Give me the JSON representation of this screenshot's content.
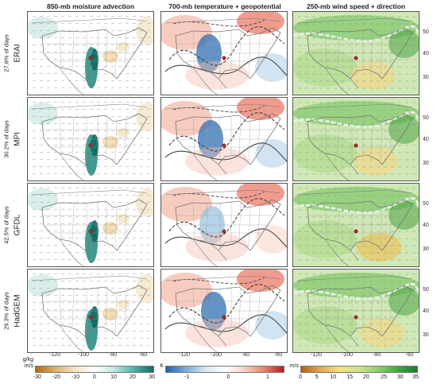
{
  "columns": [
    {
      "title": "850-mb moisture advection"
    },
    {
      "title": "700-mb temperature + geopotential"
    },
    {
      "title": "250-mb wind speed + direction"
    }
  ],
  "rows": [
    {
      "model": "ERAI",
      "pct": "27.6% of days"
    },
    {
      "model": "MPI",
      "pct": "30.2% of days"
    },
    {
      "model": "GFDL",
      "pct": "42.5% of days"
    },
    {
      "model": "HadGEM",
      "pct": "29.3% of days"
    }
  ],
  "lon_ticks": [
    "-120",
    "-100",
    "-80",
    "-60"
  ],
  "lat_ticks": [
    "50",
    "40",
    "30"
  ],
  "colorbars": [
    {
      "unit_top": "g/kg",
      "unit_bottom": "m/s",
      "ticks": [
        "-30",
        "-20",
        "-10",
        "0",
        "10",
        "20",
        "30"
      ],
      "colors": [
        "#b06a15",
        "#e2b06a",
        "#f3e3c4",
        "#ffffff",
        "#bfe7e0",
        "#4fb3a5",
        "#0f6b63"
      ]
    },
    {
      "unit_top": "K",
      "unit_bottom": "",
      "ticks": [
        "-1",
        "0",
        "1"
      ],
      "colors": [
        "#1f5fa8",
        "#78aed8",
        "#d6e6f2",
        "#ffffff",
        "#f6d2c4",
        "#e9826b",
        "#b51d22"
      ]
    },
    {
      "unit_top": "m/s",
      "unit_bottom": "",
      "ticks": [
        "0",
        "5",
        "10",
        "15",
        "20",
        "25",
        "30",
        "35"
      ],
      "colors": [
        "#b55e12",
        "#e6a853",
        "#f3e27c",
        "#c9e58c",
        "#8bcf6b",
        "#3fa83e",
        "#1d7a2e"
      ]
    }
  ],
  "colors": {
    "marker": "#c0281e",
    "map_lines": "#777777"
  }
}
